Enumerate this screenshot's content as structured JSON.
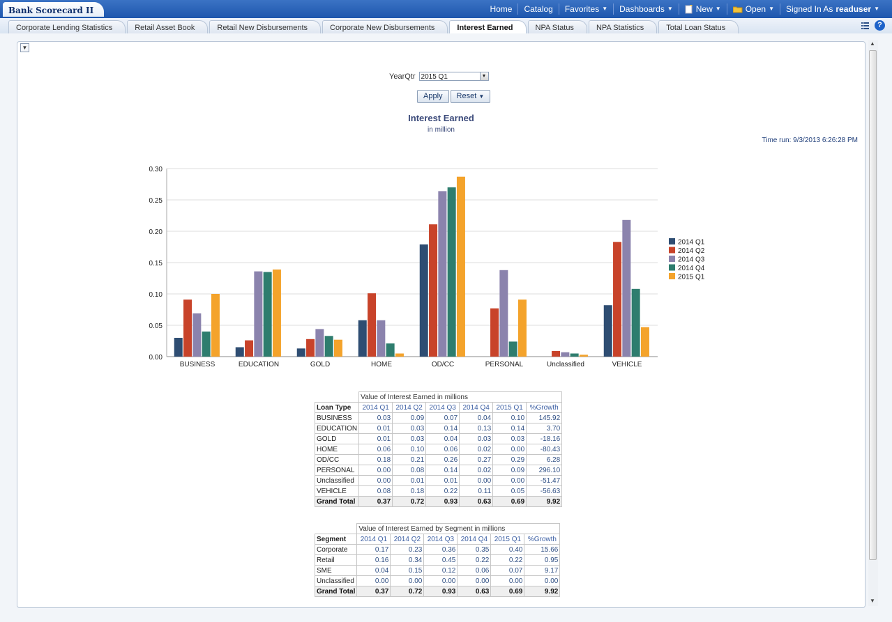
{
  "app_title": "Bank Scorecard II",
  "global_nav": {
    "home": "Home",
    "catalog": "Catalog",
    "favorites": "Favorites",
    "dashboards": "Dashboards",
    "new": "New",
    "open": "Open",
    "signed_in_as": "Signed In As",
    "user": "readuser"
  },
  "tabs": [
    "Corporate Lending Statistics",
    "Retail Asset Book",
    "Retail New Disbursements",
    "Corporate New Disbursements",
    "Interest Earned",
    "NPA Status",
    "NPA Statistics",
    "Total Loan Status"
  ],
  "active_tab": "Interest Earned",
  "prompt": {
    "label": "YearQtr",
    "value": "2015 Q1",
    "apply": "Apply",
    "reset": "Reset"
  },
  "report": {
    "title": "Interest Earned",
    "subtitle": "in million",
    "time_run": "Time run: 9/3/2013 6:26:28 PM"
  },
  "chart_data": {
    "type": "bar",
    "categories": [
      "BUSINESS",
      "EDUCATION",
      "GOLD",
      "HOME",
      "OD/CC",
      "PERSONAL",
      "Unclassified",
      "VEHICLE"
    ],
    "series": [
      {
        "name": "2014 Q1",
        "color": "#2e4d72",
        "values": [
          0.03,
          0.015,
          0.013,
          0.058,
          0.179,
          0.0,
          0.0,
          0.082
        ]
      },
      {
        "name": "2014 Q2",
        "color": "#c8432a",
        "values": [
          0.091,
          0.026,
          0.028,
          0.101,
          0.211,
          0.077,
          0.009,
          0.183
        ]
      },
      {
        "name": "2014 Q3",
        "color": "#8b83ad",
        "values": [
          0.069,
          0.136,
          0.044,
          0.058,
          0.264,
          0.138,
          0.007,
          0.218
        ]
      },
      {
        "name": "2014 Q4",
        "color": "#2e7d6e",
        "values": [
          0.04,
          0.135,
          0.033,
          0.021,
          0.27,
          0.024,
          0.005,
          0.108
        ]
      },
      {
        "name": "2015 Q1",
        "color": "#f4a32b",
        "values": [
          0.1,
          0.139,
          0.027,
          0.005,
          0.287,
          0.091,
          0.003,
          0.047
        ]
      }
    ],
    "ylim": [
      0,
      0.3
    ],
    "yticks": [
      "0.00",
      "0.05",
      "0.10",
      "0.15",
      "0.20",
      "0.25",
      "0.30"
    ],
    "legend": "right",
    "grid": true
  },
  "table1": {
    "caption": "Value of Interest Earned in millions",
    "row_header": "Loan Type",
    "columns": [
      "2014 Q1",
      "2014 Q2",
      "2014 Q3",
      "2014 Q4",
      "2015 Q1",
      "%Growth"
    ],
    "rows": [
      {
        "label": "BUSINESS",
        "values": [
          "0.03",
          "0.09",
          "0.07",
          "0.04",
          "0.10",
          "145.92"
        ]
      },
      {
        "label": "EDUCATION",
        "values": [
          "0.01",
          "0.03",
          "0.14",
          "0.13",
          "0.14",
          "3.70"
        ]
      },
      {
        "label": "GOLD",
        "values": [
          "0.01",
          "0.03",
          "0.04",
          "0.03",
          "0.03",
          "-18.16"
        ]
      },
      {
        "label": "HOME",
        "values": [
          "0.06",
          "0.10",
          "0.06",
          "0.02",
          "0.00",
          "-80.43"
        ]
      },
      {
        "label": "OD/CC",
        "values": [
          "0.18",
          "0.21",
          "0.26",
          "0.27",
          "0.29",
          "6.28"
        ]
      },
      {
        "label": "PERSONAL",
        "values": [
          "0.00",
          "0.08",
          "0.14",
          "0.02",
          "0.09",
          "296.10"
        ]
      },
      {
        "label": "Unclassified",
        "values": [
          "0.00",
          "0.01",
          "0.01",
          "0.00",
          "0.00",
          "-51.47"
        ]
      },
      {
        "label": "VEHICLE",
        "values": [
          "0.08",
          "0.18",
          "0.22",
          "0.11",
          "0.05",
          "-56.63"
        ]
      }
    ],
    "total": {
      "label": "Grand Total",
      "values": [
        "0.37",
        "0.72",
        "0.93",
        "0.63",
        "0.69",
        "9.92"
      ]
    }
  },
  "table2": {
    "caption": "Value of Interest Earned by Segment in millions",
    "row_header": "Segment",
    "columns": [
      "2014 Q1",
      "2014 Q2",
      "2014 Q3",
      "2014 Q4",
      "2015 Q1",
      "%Growth"
    ],
    "rows": [
      {
        "label": "Corporate",
        "values": [
          "0.17",
          "0.23",
          "0.36",
          "0.35",
          "0.40",
          "15.66"
        ]
      },
      {
        "label": "Retail",
        "values": [
          "0.16",
          "0.34",
          "0.45",
          "0.22",
          "0.22",
          "0.95"
        ]
      },
      {
        "label": "SME",
        "values": [
          "0.04",
          "0.15",
          "0.12",
          "0.06",
          "0.07",
          "9.17"
        ]
      },
      {
        "label": "Unclassified",
        "values": [
          "0.00",
          "0.00",
          "0.00",
          "0.00",
          "0.00",
          "0.00"
        ]
      }
    ],
    "total": {
      "label": "Grand Total",
      "values": [
        "0.37",
        "0.72",
        "0.93",
        "0.63",
        "0.69",
        "9.92"
      ]
    }
  }
}
